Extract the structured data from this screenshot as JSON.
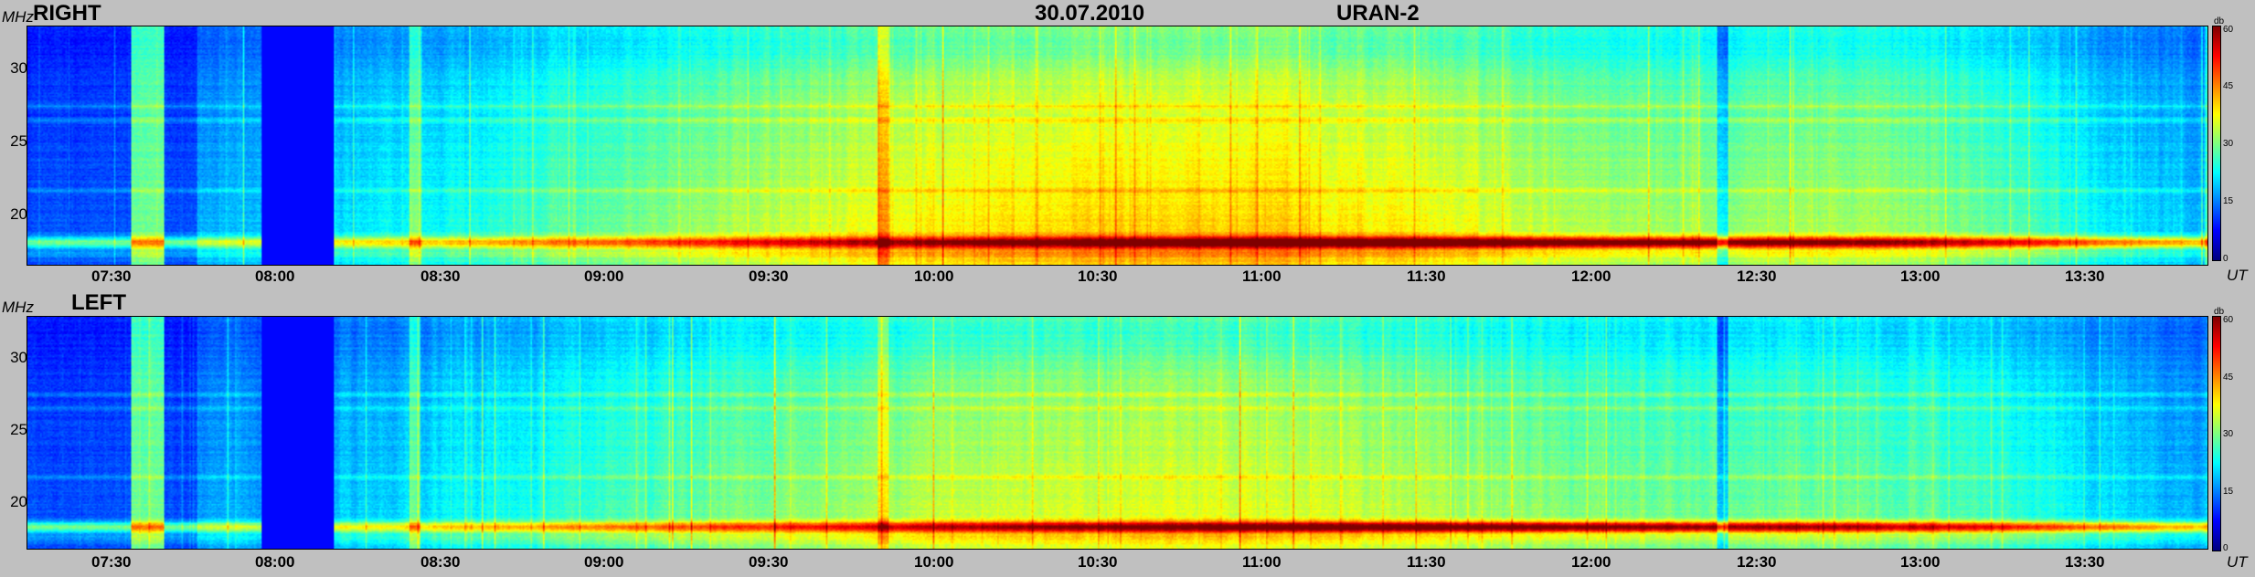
{
  "header": {
    "date": "30.07.2010",
    "instrument": "URAN-2"
  },
  "axis": {
    "y_unit": "MHz",
    "x_unit": "UT",
    "colorbar_unit": "db"
  },
  "chart_data": [
    {
      "type": "heatmap",
      "title": "RIGHT",
      "ylabel": "MHz",
      "xlabel": "UT",
      "ylim": [
        16.5,
        33
      ],
      "yticks": [
        "20",
        "25",
        "30"
      ],
      "ytick_values": [
        20,
        25,
        30
      ],
      "xlim": [
        "07:14",
        "13:54"
      ],
      "xticks": [
        "07:30",
        "08:00",
        "08:30",
        "09:00",
        "09:30",
        "10:00",
        "10:30",
        "11:00",
        "11:30",
        "12:00",
        "12:30",
        "13:00",
        "13:30"
      ],
      "colorbar": {
        "label": "db",
        "ticks": [
          "0",
          "15",
          "30",
          "45",
          "60"
        ],
        "range": [
          0,
          60
        ]
      },
      "features": {
        "data_gap": [
          "07:57",
          "08:10"
        ],
        "steady_emission_band_mhz": 18,
        "peak_intensity_interval": [
          "10:10",
          "12:30"
        ]
      }
    },
    {
      "type": "heatmap",
      "title": "LEFT",
      "ylabel": "MHz",
      "xlabel": "UT",
      "ylim": [
        16.5,
        33
      ],
      "yticks": [
        "20",
        "25",
        "30"
      ],
      "ytick_values": [
        20,
        25,
        30
      ],
      "xlim": [
        "07:14",
        "13:54"
      ],
      "xticks": [
        "07:30",
        "08:00",
        "08:30",
        "09:00",
        "09:30",
        "10:00",
        "10:30",
        "11:00",
        "11:30",
        "12:00",
        "12:30",
        "13:00",
        "13:30"
      ],
      "colorbar": {
        "label": "db",
        "ticks": [
          "0",
          "15",
          "30",
          "45",
          "60"
        ],
        "range": [
          0,
          60
        ]
      },
      "features": {
        "data_gap": [
          "07:57",
          "08:10"
        ],
        "steady_emission_band_mhz": 18,
        "peak_intensity_interval": [
          "10:10",
          "12:30"
        ]
      }
    }
  ]
}
